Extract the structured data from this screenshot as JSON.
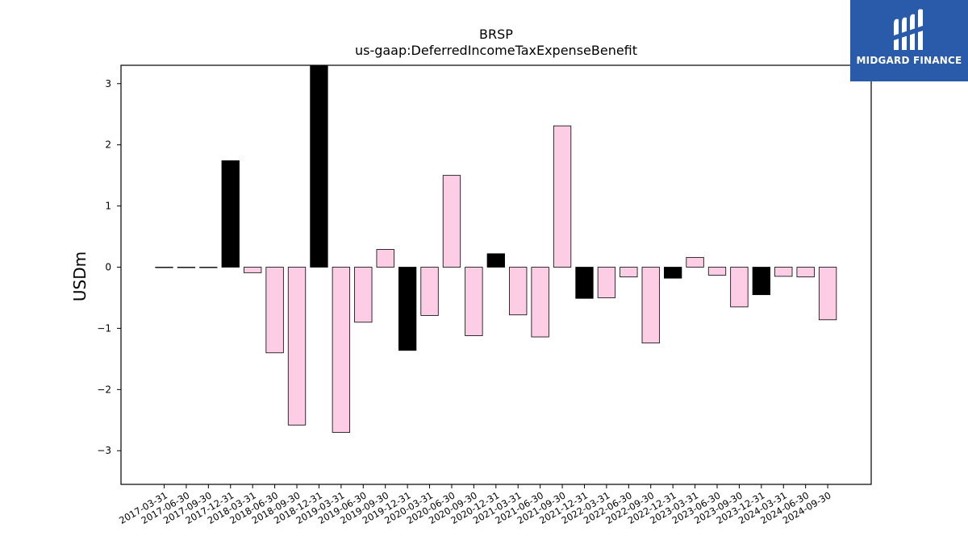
{
  "chart_data": {
    "type": "bar",
    "title": "BRSP",
    "subtitle": "us-gaap:DeferredIncomeTaxExpenseBenefit",
    "xlabel": "",
    "ylabel": "USDm",
    "ylim": [
      -3.55,
      3.3
    ],
    "yticks": [
      3,
      2,
      1,
      0,
      -1,
      -2,
      -3
    ],
    "ytick_labels": [
      "3",
      "2",
      "1",
      "0",
      "−1",
      "−2",
      "−3"
    ],
    "grid": false,
    "categories": [
      "2017-03-31",
      "2017-06-30",
      "2017-09-30",
      "2017-12-31",
      "2018-03-31",
      "2018-06-30",
      "2018-09-30",
      "2018-12-31",
      "2019-03-31",
      "2019-06-30",
      "2019-09-30",
      "2019-12-31",
      "2020-03-31",
      "2020-06-30",
      "2020-09-30",
      "2020-12-31",
      "2021-03-31",
      "2021-06-30",
      "2021-09-30",
      "2021-12-31",
      "2022-03-31",
      "2022-06-30",
      "2022-09-30",
      "2022-12-31",
      "2023-03-31",
      "2023-06-30",
      "2023-09-30",
      "2023-12-31",
      "2024-03-31",
      "2024-06-30",
      "2024-09-30"
    ],
    "values": [
      0,
      0,
      0,
      1.74,
      -0.09,
      -1.4,
      -2.58,
      3.3,
      -2.7,
      -0.9,
      0.29,
      -1.36,
      -0.79,
      1.5,
      -1.12,
      0.22,
      -0.78,
      -1.14,
      2.31,
      -0.51,
      -0.5,
      -0.16,
      -1.24,
      -0.18,
      0.16,
      -0.13,
      -0.65,
      -0.45,
      -0.15,
      -0.16,
      -0.86
    ],
    "bar_colors": [
      "#fccde5",
      "#fccde5",
      "#fccde5",
      "#000000",
      "#fccde5",
      "#fccde5",
      "#fccde5",
      "#000000",
      "#fccde5",
      "#fccde5",
      "#fccde5",
      "#000000",
      "#fccde5",
      "#fccde5",
      "#fccde5",
      "#000000",
      "#fccde5",
      "#fccde5",
      "#fccde5",
      "#000000",
      "#fccde5",
      "#fccde5",
      "#fccde5",
      "#000000",
      "#fccde5",
      "#fccde5",
      "#fccde5",
      "#000000",
      "#fccde5",
      "#fccde5",
      "#fccde5"
    ]
  },
  "logo": {
    "text": "MIDGARD FINANCE",
    "background": "#2a5aaa",
    "icon": "midgard-logo-icon"
  }
}
